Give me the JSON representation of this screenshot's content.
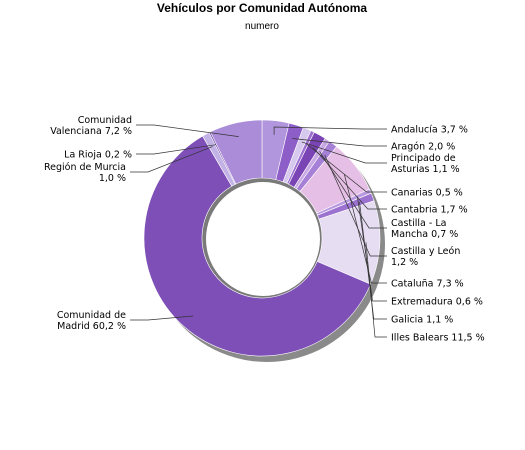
{
  "chart_data": {
    "type": "pie",
    "title": "Vehículos por Comunidad Autónoma",
    "subtitle": "numero",
    "slices": [
      {
        "name": "Andalucía",
        "value": 3.7,
        "label": "Andalucía 3,7 %",
        "color": "#b195dd"
      },
      {
        "name": "Aragón",
        "value": 2.0,
        "label": "Aragón 2,0 %",
        "color": "#8d5ec8"
      },
      {
        "name": "Principado de Asturias",
        "value": 1.1,
        "label": "Principado de Asturias 1,1 %",
        "color": "#d7c8ee"
      },
      {
        "name": "Canarias",
        "value": 0.5,
        "label": "Canarias 0,5 %",
        "color": "#9c6fd0"
      },
      {
        "name": "Cantabria",
        "value": 1.7,
        "label": "Cantabria 1,7 %",
        "color": "#7b44b4"
      },
      {
        "name": "Castilla - La Mancha",
        "value": 0.7,
        "label": "Castilla - La Mancha 0,7 %",
        "color": "#c9a9e3"
      },
      {
        "name": "Castilla y León",
        "value": 1.2,
        "label": "Castilla y León 1,2 %",
        "color": "#a67fd6"
      },
      {
        "name": "Cataluña",
        "value": 7.3,
        "label": "Cataluña 7,3 %",
        "color": "#e6bfe6"
      },
      {
        "name": "Extremadura",
        "value": 0.6,
        "label": "Extremadura 0,6 %",
        "color": "#b99ae0"
      },
      {
        "name": "Galicia",
        "value": 1.1,
        "label": "Galicia 1,1 %",
        "color": "#9b72cf"
      },
      {
        "name": "Illes Balears",
        "value": 11.5,
        "label": "Illes Balears 11,5 %",
        "color": "#e6ddf3"
      },
      {
        "name": "Comunidad de Madrid",
        "value": 60.2,
        "label": "Comunidad de Madrid 60,2 %",
        "color": "#7d4fb7"
      },
      {
        "name": "Región de Murcia",
        "value": 1.0,
        "label": "Región de Murcia 1,0 %",
        "color": "#c2b2e6"
      },
      {
        "name": "La Rioja",
        "value": 0.2,
        "label": "La Rioja 0,2 %",
        "color": "#5b2d96"
      },
      {
        "name": "Comunidad Valenciana",
        "value": 7.2,
        "label": "Comunidad Valenciana 7,2 %",
        "color": "#ab8cd9"
      }
    ],
    "legend": "none",
    "label_lines": [
      [
        "Andalucía 3,7 %"
      ],
      [
        "Aragón 2,0 %"
      ],
      [
        "Principado de",
        "Asturias 1,1 %"
      ],
      [
        "Canarias 0,5 %"
      ],
      [
        "Cantabria 1,7 %"
      ],
      [
        "Castilla - La",
        "Mancha 0,7 %"
      ],
      [
        "Castilla y León",
        "1,2 %"
      ],
      [
        "Cataluña 7,3 %"
      ],
      [
        "Extremadura 0,6 %"
      ],
      [
        "Galicia 1,1 %"
      ],
      [
        "Illes Balears 11,5 %"
      ],
      [
        "Comunidad de",
        "Madrid 60,2 %"
      ],
      [
        "Región de Murcia",
        "1,0 %"
      ],
      [
        "La Rioja 0,2 %"
      ],
      [
        "Comunidad",
        "Valenciana 7,2 %"
      ]
    ]
  }
}
